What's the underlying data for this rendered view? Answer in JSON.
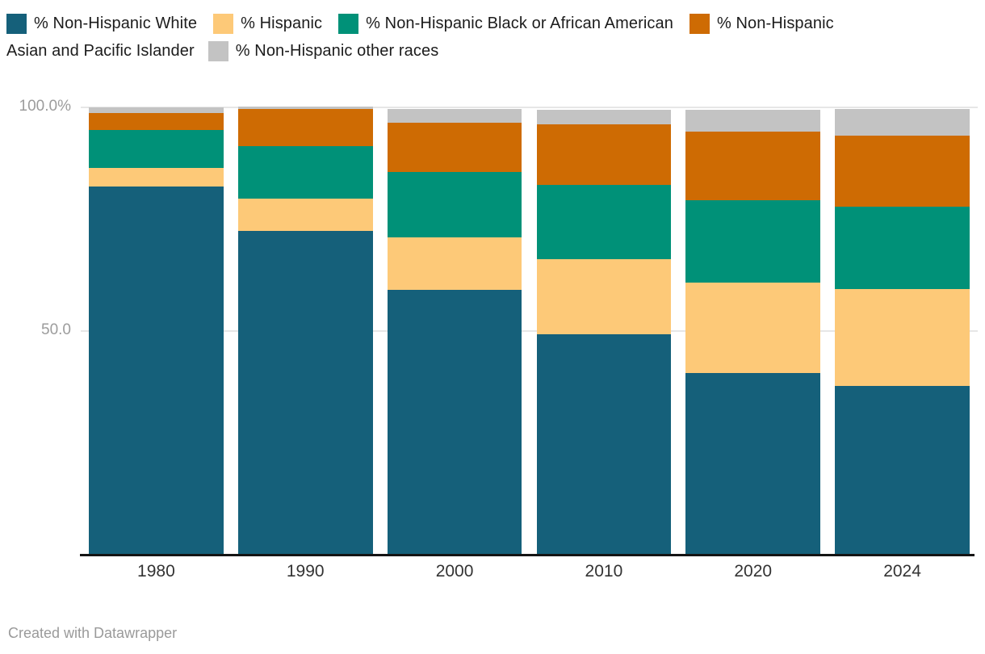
{
  "chart_data": {
    "type": "bar",
    "stacked": true,
    "orientation": "vertical",
    "categories": [
      "1980",
      "1990",
      "2000",
      "2010",
      "2020",
      "2024"
    ],
    "series": [
      {
        "name": "% Non-Hispanic White",
        "color": "#15607a",
        "values": [
          82.3,
          72.4,
          59.2,
          49.3,
          40.6,
          37.8
        ]
      },
      {
        "name": "% Hispanic",
        "color": "#fdc978",
        "values": [
          4.1,
          7.2,
          11.7,
          16.7,
          20.2,
          21.6
        ]
      },
      {
        "name": "% Non-Hispanic Black or African American",
        "color": "#009178",
        "values": [
          8.6,
          11.8,
          14.7,
          16.7,
          18.4,
          18.4
        ]
      },
      {
        "name": "% Non-Hispanic Asian and Pacific Islander",
        "color": "#ce6b03",
        "values": [
          3.7,
          8.2,
          11.0,
          13.5,
          15.3,
          15.8
        ]
      },
      {
        "name": "% Non-Hispanic other races",
        "color": "#c3c3c3",
        "values": [
          1.3,
          0.5,
          3.1,
          3.3,
          5.0,
          6.0
        ]
      }
    ],
    "ylim": [
      0,
      100
    ],
    "yticks": [
      {
        "value": 100,
        "label": "100.0%"
      },
      {
        "value": 50,
        "label": "50.0"
      }
    ],
    "xlabel": "",
    "ylabel": "",
    "grid": "horizontal",
    "legend_position": "top"
  },
  "legend": {
    "items_line1": [
      {
        "series_index": 0,
        "label": "% Non-Hispanic White"
      },
      {
        "series_index": 1,
        "label": "% Hispanic"
      },
      {
        "series_index": 2,
        "label": "% Non-Hispanic Black or African American"
      },
      {
        "series_index": 3,
        "label": "% Non-Hispanic"
      }
    ],
    "line2": {
      "continuation": "Asian and Pacific Islander",
      "item": {
        "series_index": 4,
        "label": "% Non-Hispanic other races"
      }
    }
  },
  "footer": {
    "credit": "Created with Datawrapper"
  }
}
